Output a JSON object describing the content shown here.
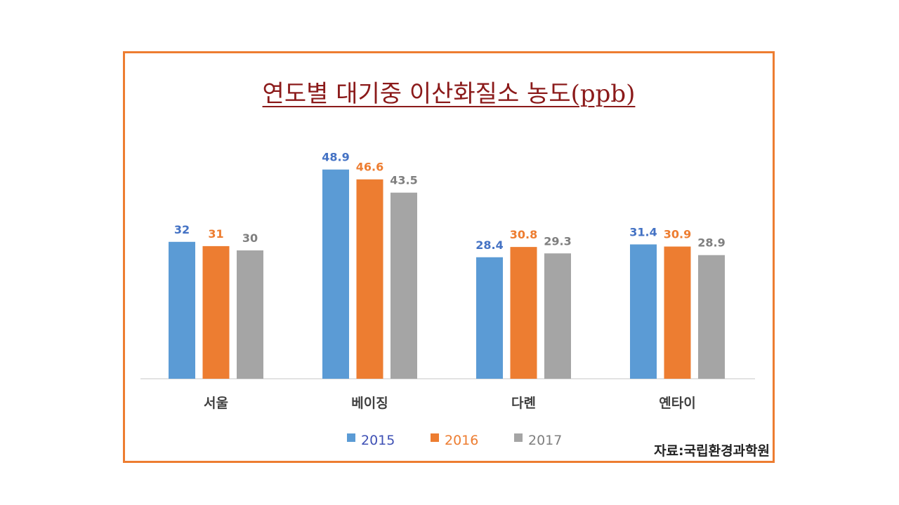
{
  "chart_data": {
    "type": "bar",
    "title": "연도별 대기중 이산화질소 농도(ppb)",
    "categories": [
      "서울",
      "베이징",
      "다롄",
      "옌타이"
    ],
    "series": [
      {
        "name": "2015",
        "values": [
          32,
          48.9,
          28.4,
          31.4
        ],
        "color": "#5B9BD5",
        "label_color": "#4472C4"
      },
      {
        "name": "2016",
        "values": [
          31,
          46.6,
          30.8,
          30.9
        ],
        "color": "#ED7D31",
        "label_color": "#ED7D31"
      },
      {
        "name": "2017",
        "values": [
          30,
          43.5,
          29.3,
          28.9
        ],
        "color": "#A5A5A5",
        "label_color": "#7F7F7F"
      }
    ],
    "value_labels": [
      [
        "32",
        "48.9",
        "28.4",
        "31.4"
      ],
      [
        "31",
        "46.6",
        "30.8",
        "30.9"
      ],
      [
        "30",
        "43.5",
        "29.3",
        "28.9"
      ]
    ],
    "ylim": [
      0,
      55
    ],
    "legend": "bottom",
    "grid": false
  },
  "source": "자료:국립환경과학원",
  "colors": {
    "frame": "#ED7D31",
    "title": "#8B1A1A",
    "legend_text": [
      "#3F51B5",
      "#ED7D31",
      "#7F7F7F"
    ]
  }
}
